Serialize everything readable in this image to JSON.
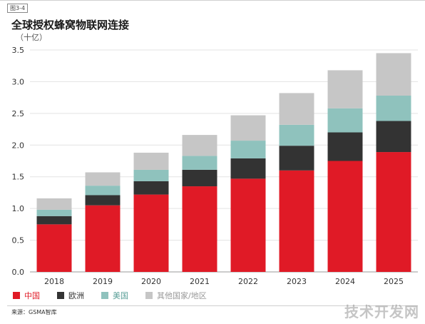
{
  "figure_label": "图3-4",
  "source": "来源：GSMA智库",
  "watermark": "技术开发网",
  "colors": {
    "china": "#e01a26",
    "europe": "#333333",
    "usa": "#8fc2bd",
    "other": "#c6c6c6"
  },
  "chart_data": {
    "type": "bar",
    "stacked": true,
    "title": "全球授权蜂窝物联网连接",
    "unit": "（十亿）",
    "categories": [
      "2018",
      "2019",
      "2020",
      "2021",
      "2022",
      "2023",
      "2024",
      "2025"
    ],
    "series": [
      {
        "name": "中国",
        "color": "#e01a26",
        "values": [
          0.75,
          1.05,
          1.22,
          1.35,
          1.47,
          1.6,
          1.75,
          1.89
        ]
      },
      {
        "name": "欧洲",
        "color": "#333333",
        "values": [
          0.13,
          0.16,
          0.21,
          0.26,
          0.32,
          0.39,
          0.45,
          0.49
        ]
      },
      {
        "name": "美国",
        "color": "#8fc2bd",
        "values": [
          0.1,
          0.15,
          0.18,
          0.22,
          0.28,
          0.33,
          0.38,
          0.4
        ]
      },
      {
        "name": "其他国家/地区",
        "color": "#c6c6c6",
        "values": [
          0.18,
          0.21,
          0.27,
          0.33,
          0.4,
          0.5,
          0.6,
          0.67
        ]
      }
    ],
    "ylim": [
      0,
      3.5
    ],
    "yticks": [
      "0.0",
      "0.5",
      "1.0",
      "1.5",
      "2.0",
      "2.5",
      "3.0",
      "3.5"
    ],
    "grid": true,
    "legend": "bottom-left"
  }
}
